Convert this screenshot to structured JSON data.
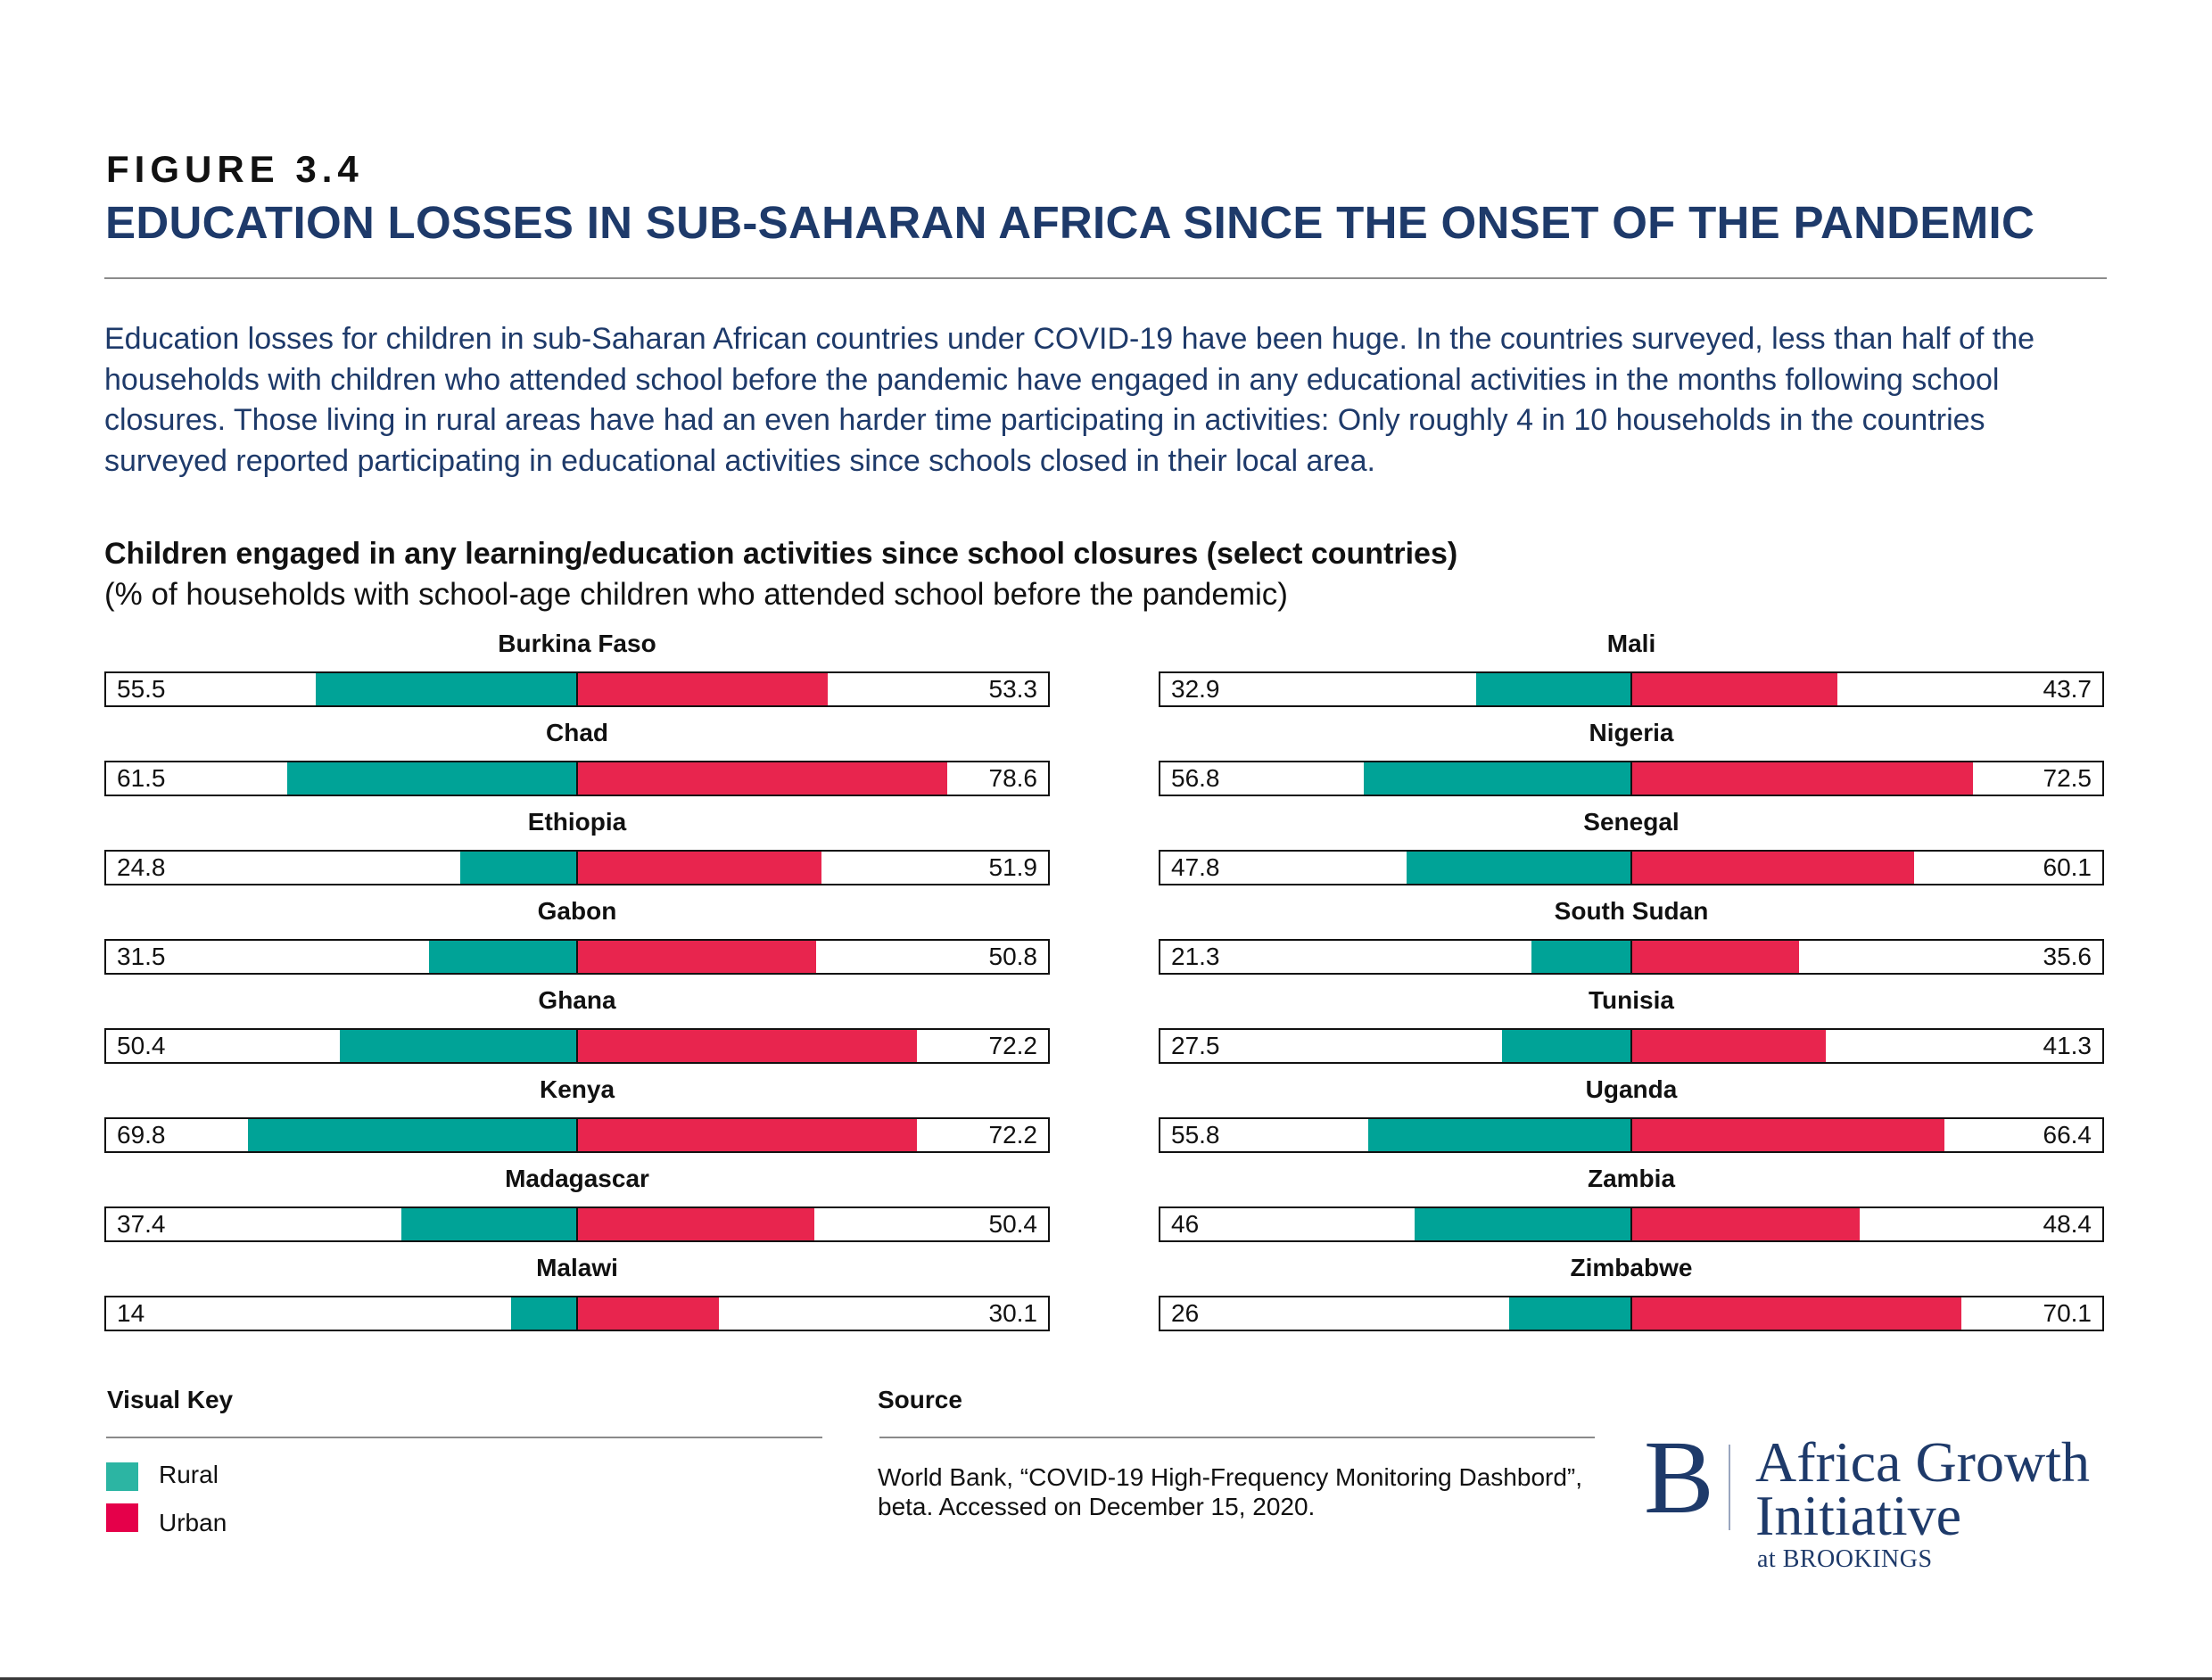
{
  "figure": {
    "label": "FIGURE 3.4",
    "title": "EDUCATION LOSSES IN SUB-SAHARAN AFRICA SINCE THE ONSET OF THE PANDEMIC"
  },
  "intro": {
    "lines": [
      "Education losses for children in sub-Saharan African countries under COVID-19 have been huge. In the countries surveyed, less than half of the",
      "households with children who attended school before the pandemic have engaged in any educational activities in the months following school",
      "closures. Those living in rural areas have had an even harder time participating in activities: Only roughly 4 in 10 households in the countries",
      "surveyed reported participating in educational activities since schools closed in their local area."
    ]
  },
  "colors": {
    "rural": "#00a397",
    "urban": "#e8254e",
    "rural_key": "#2cb5a3",
    "urban_key": "#e5004a",
    "navy": "#1e3a6a"
  },
  "chart_data": {
    "type": "bar",
    "orientation": "diverging-horizontal",
    "title": "Children engaged in any learning/education activities since school closures (select countries)",
    "subtitle": "(% of households with school-age children who attended school before the pandemic)",
    "xlim": [
      0,
      100
    ],
    "series": [
      {
        "name": "Rural",
        "direction": "left"
      },
      {
        "name": "Urban",
        "direction": "right"
      }
    ],
    "panels": [
      {
        "position": "left",
        "countries": [
          {
            "name": "Burkina Faso",
            "rural": 55.5,
            "urban": 53.3
          },
          {
            "name": "Chad",
            "rural": 61.5,
            "urban": 78.6
          },
          {
            "name": "Ethiopia",
            "rural": 24.8,
            "urban": 51.9
          },
          {
            "name": "Gabon",
            "rural": 31.5,
            "urban": 50.8
          },
          {
            "name": "Ghana",
            "rural": 50.4,
            "urban": 72.2
          },
          {
            "name": "Kenya",
            "rural": 69.8,
            "urban": 72.2
          },
          {
            "name": "Madagascar",
            "rural": 37.4,
            "urban": 50.4
          },
          {
            "name": "Malawi",
            "rural": 14,
            "urban": 30.1
          }
        ]
      },
      {
        "position": "right",
        "countries": [
          {
            "name": "Mali",
            "rural": 32.9,
            "urban": 43.7
          },
          {
            "name": "Nigeria",
            "rural": 56.8,
            "urban": 72.5
          },
          {
            "name": "Senegal",
            "rural": 47.8,
            "urban": 60.1
          },
          {
            "name": "South Sudan",
            "rural": 21.3,
            "urban": 35.6
          },
          {
            "name": "Tunisia",
            "rural": 27.5,
            "urban": 41.3
          },
          {
            "name": "Uganda",
            "rural": 55.8,
            "urban": 66.4
          },
          {
            "name": "Zambia",
            "rural": 46,
            "urban": 48.4
          },
          {
            "name": "Zimbabwe",
            "rural": 26,
            "urban": 70.1
          }
        ]
      }
    ],
    "legend": {
      "title": "Visual Key",
      "placement": "bottom-left",
      "entries": [
        "Rural",
        "Urban"
      ]
    }
  },
  "source": {
    "title": "Source",
    "lines": [
      "World Bank, “COVID-19 High-Frequency Monitoring Dashbord”,",
      "beta. Accessed on December 15, 2020."
    ]
  },
  "logo": {
    "mark": "B",
    "line1": "Africa Growth",
    "line2": "Initiative",
    "line3": "at BROOKINGS"
  }
}
